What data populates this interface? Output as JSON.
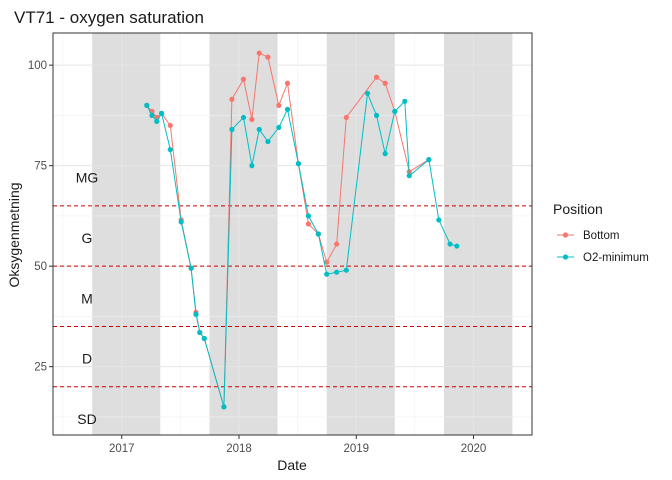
{
  "chart_data": {
    "type": "line",
    "title": "VT71 - oxygen saturation",
    "xlabel": "Date",
    "ylabel": "Oksygenmetning",
    "x_type": "date",
    "xlim": [
      "2016-06-01",
      "2020-07-01"
    ],
    "ylim": [
      8,
      108
    ],
    "x_ticks": [
      {
        "date": "2017-01-01",
        "label": "2017"
      },
      {
        "date": "2018-01-01",
        "label": "2018"
      },
      {
        "date": "2019-01-01",
        "label": "2019"
      },
      {
        "date": "2020-01-01",
        "label": "2020"
      }
    ],
    "y_ticks": [
      25,
      50,
      75,
      100
    ],
    "grid": true,
    "shaded_periods": [
      {
        "start": "2016-10-01",
        "end": "2017-05-01"
      },
      {
        "start": "2017-10-01",
        "end": "2018-05-01"
      },
      {
        "start": "2018-10-01",
        "end": "2019-05-01"
      },
      {
        "start": "2019-10-01",
        "end": "2020-05-01"
      }
    ],
    "threshold_lines": [
      {
        "y": 65,
        "color": "#cc0000"
      },
      {
        "y": 50,
        "color": "#cc0000"
      },
      {
        "y": 35,
        "color": "#cc0000"
      },
      {
        "y": 20,
        "color": "#cc0000"
      }
    ],
    "band_labels": [
      {
        "label": "MG",
        "y": 72
      },
      {
        "label": "G",
        "y": 57
      },
      {
        "label": "M",
        "y": 42
      },
      {
        "label": "D",
        "y": 27
      },
      {
        "label": "SD",
        "y": 12
      }
    ],
    "legend": {
      "title": "Position",
      "position": "right"
    },
    "series": [
      {
        "name": "Bottom",
        "color": "#f8766d",
        "points": [
          {
            "x": "2017-03-20",
            "y": 90
          },
          {
            "x": "2017-04-05",
            "y": 88.5
          },
          {
            "x": "2017-04-20",
            "y": 87
          },
          {
            "x": "2017-05-05",
            "y": 88
          },
          {
            "x": "2017-06-01",
            "y": 85
          },
          {
            "x": "2017-07-05",
            "y": 61.5
          },
          {
            "x": "2017-08-05",
            "y": 49.5
          },
          {
            "x": "2017-08-20",
            "y": 38.5
          },
          {
            "x": "2017-09-01",
            "y": 33.5
          },
          {
            "x": "2017-09-15",
            "y": 32
          },
          {
            "x": "2017-11-15",
            "y": 15
          },
          {
            "x": "2017-12-10",
            "y": 91.5
          },
          {
            "x": "2018-01-15",
            "y": 96.5
          },
          {
            "x": "2018-02-10",
            "y": 86.5
          },
          {
            "x": "2018-03-05",
            "y": 103
          },
          {
            "x": "2018-04-01",
            "y": 102
          },
          {
            "x": "2018-05-05",
            "y": 90
          },
          {
            "x": "2018-06-01",
            "y": 95.5
          },
          {
            "x": "2018-07-05",
            "y": 75.5
          },
          {
            "x": "2018-08-05",
            "y": 60.5
          },
          {
            "x": "2018-09-05",
            "y": 58
          },
          {
            "x": "2018-10-01",
            "y": 51
          },
          {
            "x": "2018-11-01",
            "y": 55.5
          },
          {
            "x": "2018-12-01",
            "y": 87
          },
          {
            "x": "2019-03-05",
            "y": 97
          },
          {
            "x": "2019-04-01",
            "y": 95.5
          },
          {
            "x": "2019-05-01",
            "y": 88.5
          },
          {
            "x": "2019-06-15",
            "y": 73.5
          },
          {
            "x": "2019-08-15",
            "y": 76.5
          }
        ]
      },
      {
        "name": "O2-minimum",
        "color": "#00bfc4",
        "points": [
          {
            "x": "2017-03-20",
            "y": 90
          },
          {
            "x": "2017-04-05",
            "y": 87.5
          },
          {
            "x": "2017-04-20",
            "y": 86
          },
          {
            "x": "2017-05-05",
            "y": 88
          },
          {
            "x": "2017-06-01",
            "y": 79
          },
          {
            "x": "2017-07-05",
            "y": 61
          },
          {
            "x": "2017-08-05",
            "y": 49.5
          },
          {
            "x": "2017-08-20",
            "y": 38
          },
          {
            "x": "2017-09-01",
            "y": 33.5
          },
          {
            "x": "2017-09-15",
            "y": 32
          },
          {
            "x": "2017-11-15",
            "y": 15
          },
          {
            "x": "2017-12-10",
            "y": 84
          },
          {
            "x": "2018-01-15",
            "y": 87
          },
          {
            "x": "2018-02-10",
            "y": 75
          },
          {
            "x": "2018-03-05",
            "y": 84
          },
          {
            "x": "2018-04-01",
            "y": 81
          },
          {
            "x": "2018-05-05",
            "y": 84.5
          },
          {
            "x": "2018-06-01",
            "y": 89
          },
          {
            "x": "2018-07-05",
            "y": 75.5
          },
          {
            "x": "2018-08-05",
            "y": 62.5
          },
          {
            "x": "2018-09-05",
            "y": 58
          },
          {
            "x": "2018-10-01",
            "y": 48
          },
          {
            "x": "2018-11-01",
            "y": 48.5
          },
          {
            "x": "2018-12-01",
            "y": 49
          },
          {
            "x": "2019-02-05",
            "y": 93
          },
          {
            "x": "2019-03-05",
            "y": 87.5
          },
          {
            "x": "2019-04-01",
            "y": 78
          },
          {
            "x": "2019-05-01",
            "y": 88.5
          },
          {
            "x": "2019-06-01",
            "y": 91
          },
          {
            "x": "2019-06-15",
            "y": 72.5
          },
          {
            "x": "2019-08-15",
            "y": 76.5
          },
          {
            "x": "2019-09-15",
            "y": 61.5
          },
          {
            "x": "2019-10-20",
            "y": 55.5
          },
          {
            "x": "2019-11-10",
            "y": 55
          }
        ]
      }
    ]
  }
}
